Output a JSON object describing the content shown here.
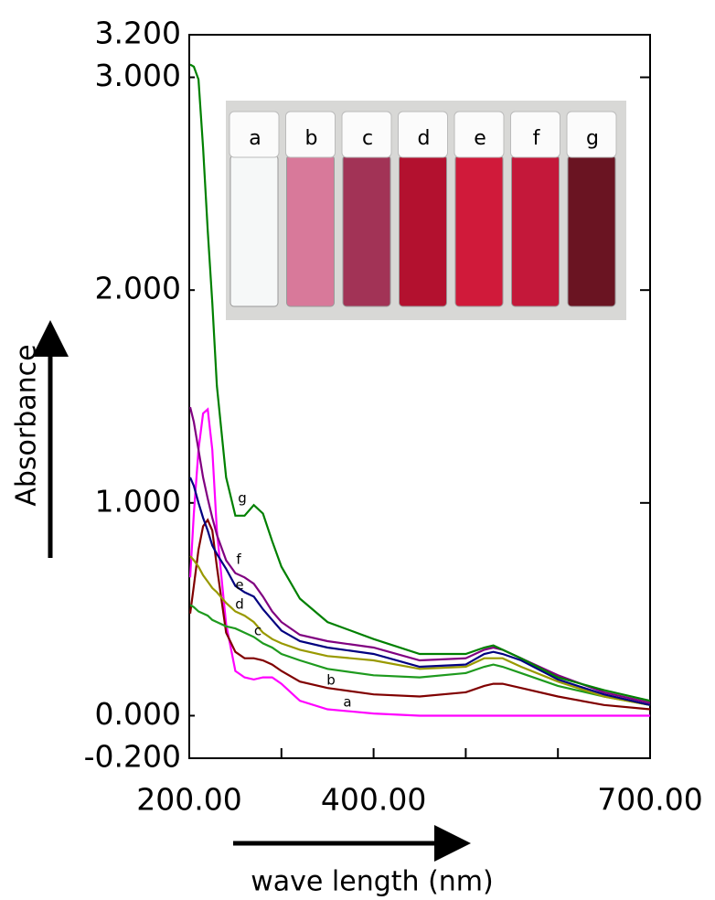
{
  "chart_data": {
    "type": "line",
    "ylabel": "Absorbance",
    "xlabel": "wave length (nm)",
    "xlim": [
      200,
      700
    ],
    "ylim": [
      -0.2,
      3.2
    ],
    "xticks": [
      {
        "value": 200,
        "label": "200.00"
      },
      {
        "value": 300,
        "label": null
      },
      {
        "value": 400,
        "label": "400.00"
      },
      {
        "value": 500,
        "label": null
      },
      {
        "value": 600,
        "label": null
      },
      {
        "value": 700,
        "label": "700.00"
      }
    ],
    "yticks": [
      {
        "value": -0.2,
        "label": "-0.200"
      },
      {
        "value": 0,
        "label": "0.000"
      },
      {
        "value": 1,
        "label": "1.000"
      },
      {
        "value": 2,
        "label": "2.000"
      },
      {
        "value": 3,
        "label": "3.000"
      },
      {
        "value": 3.2,
        "label": "3.200"
      }
    ],
    "x": [
      201,
      205,
      210,
      215,
      220,
      225,
      230,
      240,
      250,
      260,
      270,
      280,
      290,
      300,
      320,
      350,
      400,
      450,
      500,
      520,
      530,
      540,
      560,
      600,
      650,
      700
    ],
    "series": [
      {
        "name": "a",
        "color": "#ff00ff",
        "values": [
          0.65,
          0.95,
          1.25,
          1.42,
          1.44,
          1.25,
          0.87,
          0.43,
          0.21,
          0.18,
          0.17,
          0.18,
          0.18,
          0.15,
          0.07,
          0.03,
          0.01,
          0.0,
          0.0,
          0.0,
          0.0,
          0.0,
          0.0,
          0.0,
          0.0,
          0.0
        ]
      },
      {
        "name": "b",
        "color": "#800000",
        "values": [
          0.48,
          0.61,
          0.78,
          0.89,
          0.92,
          0.87,
          0.7,
          0.39,
          0.3,
          0.27,
          0.27,
          0.26,
          0.24,
          0.21,
          0.16,
          0.13,
          0.1,
          0.09,
          0.11,
          0.14,
          0.15,
          0.15,
          0.13,
          0.09,
          0.05,
          0.03
        ]
      },
      {
        "name": "c",
        "color": "#1e9a1e",
        "values": [
          0.52,
          0.51,
          0.49,
          0.48,
          0.47,
          0.45,
          0.44,
          0.42,
          0.41,
          0.39,
          0.37,
          0.34,
          0.32,
          0.29,
          0.26,
          0.22,
          0.19,
          0.18,
          0.2,
          0.23,
          0.24,
          0.23,
          0.2,
          0.14,
          0.09,
          0.05
        ]
      },
      {
        "name": "d",
        "color": "#999900",
        "values": [
          0.75,
          0.73,
          0.7,
          0.66,
          0.63,
          0.6,
          0.58,
          0.53,
          0.49,
          0.47,
          0.44,
          0.39,
          0.36,
          0.34,
          0.31,
          0.28,
          0.26,
          0.22,
          0.23,
          0.27,
          0.27,
          0.27,
          0.23,
          0.16,
          0.09,
          0.05
        ]
      },
      {
        "name": "e",
        "color": "#000080",
        "values": [
          1.12,
          1.08,
          1.0,
          0.93,
          0.87,
          0.8,
          0.76,
          0.69,
          0.61,
          0.58,
          0.56,
          0.5,
          0.45,
          0.4,
          0.35,
          0.32,
          0.29,
          0.23,
          0.24,
          0.29,
          0.3,
          0.29,
          0.26,
          0.17,
          0.1,
          0.05
        ]
      },
      {
        "name": "f",
        "color": "#800080",
        "values": [
          1.45,
          1.38,
          1.25,
          1.12,
          1.02,
          0.93,
          0.85,
          0.73,
          0.67,
          0.65,
          0.62,
          0.56,
          0.49,
          0.44,
          0.38,
          0.35,
          0.32,
          0.26,
          0.27,
          0.31,
          0.32,
          0.31,
          0.27,
          0.19,
          0.11,
          0.06
        ]
      },
      {
        "name": "g",
        "color": "#008000",
        "values": [
          3.06,
          3.05,
          2.99,
          2.67,
          2.28,
          1.94,
          1.55,
          1.12,
          0.94,
          0.94,
          0.99,
          0.95,
          0.82,
          0.7,
          0.55,
          0.44,
          0.36,
          0.29,
          0.29,
          0.32,
          0.33,
          0.31,
          0.27,
          0.18,
          0.12,
          0.07
        ]
      }
    ]
  }
}
